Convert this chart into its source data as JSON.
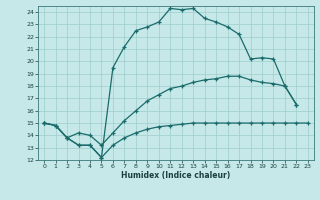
{
  "xlabel": "Humidex (Indice chaleur)",
  "bg_color": "#c6e8e8",
  "grid_color": "#9ecece",
  "line_color": "#1a6b6b",
  "xlim": [
    -0.5,
    23.5
  ],
  "ylim": [
    12,
    24.5
  ],
  "xticks": [
    0,
    1,
    2,
    3,
    4,
    5,
    6,
    7,
    8,
    9,
    10,
    11,
    12,
    13,
    14,
    15,
    16,
    17,
    18,
    19,
    20,
    21,
    22,
    23
  ],
  "yticks": [
    12,
    13,
    14,
    15,
    16,
    17,
    18,
    19,
    20,
    21,
    22,
    23,
    24
  ],
  "line1_x": [
    0,
    1,
    2,
    3,
    4,
    5,
    6,
    7,
    8,
    9,
    10,
    11,
    12,
    13,
    14,
    15,
    16,
    17,
    18,
    19,
    20,
    21,
    22
  ],
  "line1_y": [
    15,
    14.8,
    13.8,
    13.2,
    13.2,
    12.2,
    19.5,
    21.2,
    22.5,
    22.8,
    23.2,
    24.3,
    24.2,
    24.3,
    23.5,
    23.2,
    22.8,
    22.2,
    20.2,
    20.3,
    20.2,
    18.0,
    16.5
  ],
  "line2_x": [
    0,
    1,
    2,
    3,
    4,
    5,
    6,
    7,
    8,
    9,
    10,
    11,
    12,
    13,
    14,
    15,
    16,
    17,
    18,
    19,
    20,
    21,
    22
  ],
  "line2_y": [
    15,
    14.8,
    13.8,
    14.2,
    14.0,
    13.2,
    14.2,
    15.2,
    16.0,
    16.8,
    17.3,
    17.8,
    18.0,
    18.3,
    18.5,
    18.6,
    18.8,
    18.8,
    18.5,
    18.3,
    18.2,
    18.0,
    16.5
  ],
  "line3_x": [
    0,
    1,
    2,
    3,
    4,
    5,
    6,
    7,
    8,
    9,
    10,
    11,
    12,
    13,
    14,
    15,
    16,
    17,
    18,
    19,
    20,
    21,
    22,
    23
  ],
  "line3_y": [
    15,
    14.8,
    13.8,
    13.2,
    13.2,
    12.2,
    13.2,
    13.8,
    14.2,
    14.5,
    14.7,
    14.8,
    14.9,
    15.0,
    15.0,
    15.0,
    15.0,
    15.0,
    15.0,
    15.0,
    15.0,
    15.0,
    15.0,
    15.0
  ]
}
